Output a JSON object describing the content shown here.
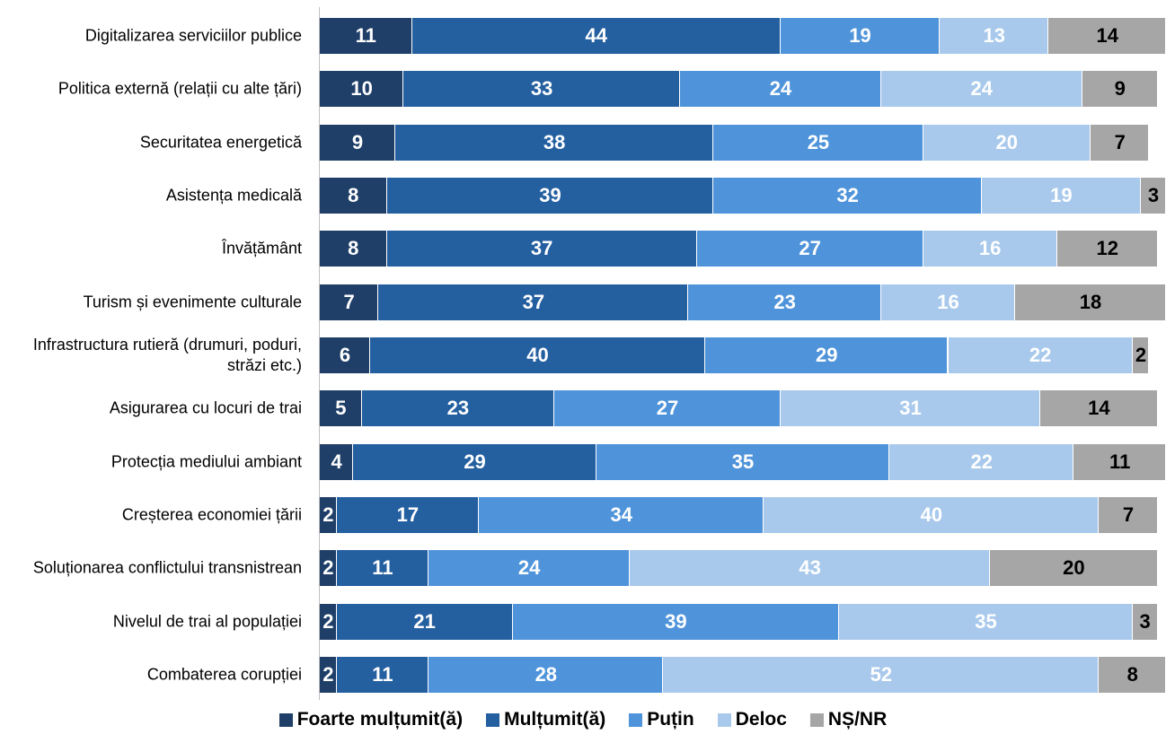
{
  "chart_data": {
    "type": "stacked-bar-horizontal",
    "categories": [
      "Digitalizarea serviciilor publice",
      "Politica externă (relații cu alte țări)",
      "Securitatea energetică",
      "Asistența medicală",
      "Învățământ",
      "Turism și evenimente culturale",
      "Infrastructura rutieră (drumuri, poduri, străzi etc.)",
      "Asigurarea cu locuri de trai",
      "Protecția mediului ambiant",
      "Creșterea economiei țării",
      "Soluționarea conflictului transnistrean",
      "Nivelul de trai al populației",
      "Combaterea corupției"
    ],
    "series": [
      {
        "name": "Foarte mulțumit(ă)",
        "color": "#1f3f68",
        "values": [
          11,
          10,
          9,
          8,
          8,
          7,
          6,
          5,
          4,
          2,
          2,
          2,
          2
        ]
      },
      {
        "name": "Mulțumit(ă)",
        "color": "#245fa0",
        "values": [
          44,
          33,
          38,
          39,
          37,
          37,
          40,
          23,
          29,
          17,
          11,
          21,
          11
        ]
      },
      {
        "name": "Puțin",
        "color": "#4f94da",
        "values": [
          19,
          24,
          25,
          32,
          27,
          23,
          29,
          27,
          35,
          34,
          24,
          39,
          28
        ]
      },
      {
        "name": "Deloc",
        "color": "#a8c9ec",
        "values": [
          13,
          24,
          20,
          19,
          16,
          16,
          22,
          31,
          22,
          40,
          43,
          35,
          52
        ]
      },
      {
        "name": "NȘ/NR",
        "color": "#a6a6a6",
        "values": [
          14,
          9,
          7,
          3,
          12,
          18,
          2,
          14,
          11,
          7,
          20,
          3,
          8
        ]
      }
    ]
  }
}
